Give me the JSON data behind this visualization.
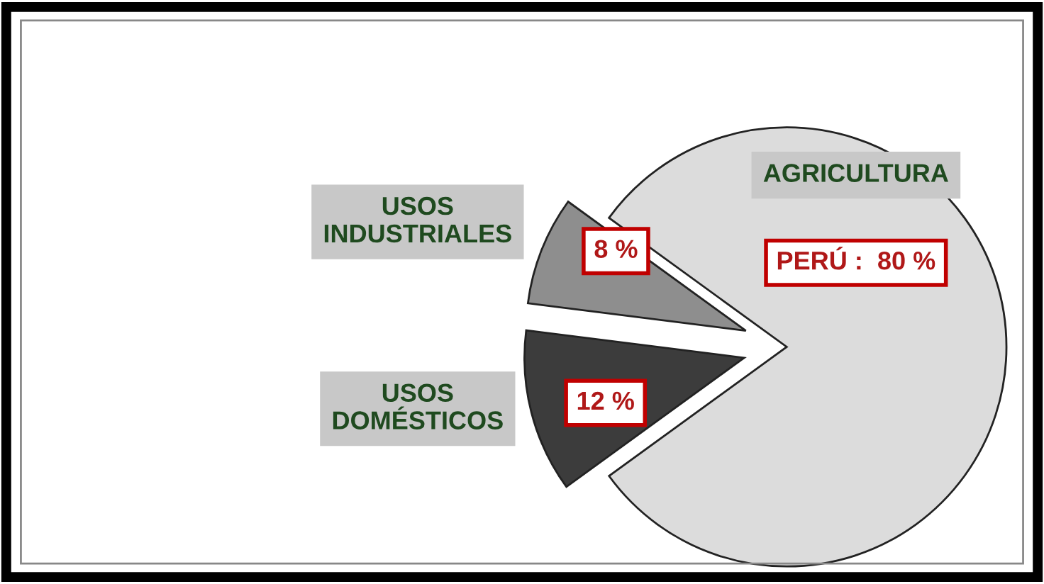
{
  "chart_data": {
    "type": "pie",
    "categories": [
      "AGRICULTURA",
      "USOS\nINDUSTRIALES",
      "USOS\nDOMÉSTICOS"
    ],
    "values": [
      80,
      8,
      12
    ],
    "colors": [
      "#dcdcdc",
      "#8e8e8e",
      "#3c3c3c"
    ],
    "value_labels": [
      "PERÚ :  80 %",
      "8 %",
      "12 %"
    ],
    "legend": false
  }
}
